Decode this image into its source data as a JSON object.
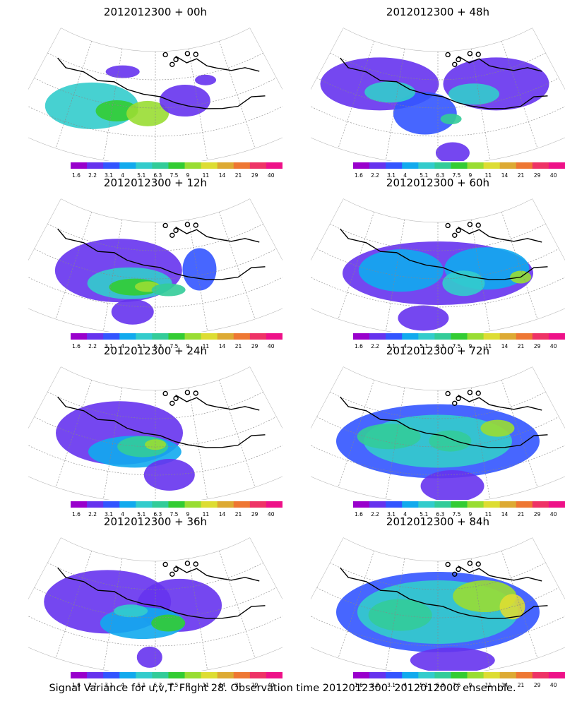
{
  "caption": "Signal Variance for u,v,T. Flight 28. Observation time 2012012300. 2012012000 ensemble.",
  "colorbar": {
    "labels": [
      "1.6",
      "2.2",
      "3.1",
      "4",
      "5.1",
      "6.3",
      "7.5",
      "9",
      "11",
      "14",
      "21",
      "29",
      "40"
    ],
    "colors": [
      "#9900cc",
      "#6633ee",
      "#3355ff",
      "#11aaee",
      "#33cccc",
      "#33cc99",
      "#33cc33",
      "#99dd33",
      "#dddd33",
      "#ddaa33",
      "#ee7733",
      "#ee3366",
      "#ee1188"
    ]
  },
  "chart_data": [
    {
      "type": "heatmap",
      "title": "2012012300  + 00h",
      "lead_hours": 0,
      "colorbar_range": [
        1.6,
        40
      ],
      "blobs": [
        {
          "u": 0.25,
          "v": 0.55,
          "rx": 0.22,
          "ry": 0.22,
          "value": 5.1
        },
        {
          "u": 0.35,
          "v": 0.55,
          "rx": 0.1,
          "ry": 0.1,
          "value": 8.3
        },
        {
          "u": 0.47,
          "v": 0.55,
          "rx": 0.1,
          "ry": 0.12,
          "value": 9
        },
        {
          "u": 0.62,
          "v": 0.45,
          "rx": 0.12,
          "ry": 0.15,
          "value": 2.2
        },
        {
          "u": 0.35,
          "v": 0.2,
          "rx": 0.08,
          "ry": 0.06,
          "value": 2.2
        },
        {
          "u": 0.72,
          "v": 0.3,
          "rx": 0.05,
          "ry": 0.05,
          "value": 2.2
        }
      ]
    },
    {
      "type": "heatmap",
      "title": "2012012300  + 48h",
      "lead_hours": 48,
      "colorbar_range": [
        1.6,
        40
      ],
      "blobs": [
        {
          "u": 0.25,
          "v": 0.35,
          "rx": 0.28,
          "ry": 0.25,
          "value": 2.2
        },
        {
          "u": 0.75,
          "v": 0.35,
          "rx": 0.25,
          "ry": 0.25,
          "value": 2.2
        },
        {
          "u": 0.45,
          "v": 0.55,
          "rx": 0.15,
          "ry": 0.2,
          "value": 3.1
        },
        {
          "u": 0.3,
          "v": 0.4,
          "rx": 0.12,
          "ry": 0.1,
          "value": 5.1
        },
        {
          "u": 0.65,
          "v": 0.4,
          "rx": 0.12,
          "ry": 0.1,
          "value": 5.1
        },
        {
          "u": 0.55,
          "v": 0.9,
          "rx": 0.08,
          "ry": 0.1,
          "value": 2.2
        },
        {
          "u": 0.55,
          "v": 0.6,
          "rx": 0.05,
          "ry": 0.05,
          "value": 6.3
        }
      ]
    },
    {
      "type": "heatmap",
      "title": "2012012300  + 12h",
      "lead_hours": 12,
      "colorbar_range": [
        1.6,
        40
      ],
      "blobs": [
        {
          "u": 0.35,
          "v": 0.45,
          "rx": 0.3,
          "ry": 0.3,
          "value": 2.2
        },
        {
          "u": 0.4,
          "v": 0.55,
          "rx": 0.2,
          "ry": 0.15,
          "value": 5.1
        },
        {
          "u": 0.42,
          "v": 0.58,
          "rx": 0.12,
          "ry": 0.08,
          "value": 7.5
        },
        {
          "u": 0.47,
          "v": 0.57,
          "rx": 0.06,
          "ry": 0.05,
          "value": 9
        },
        {
          "u": 0.55,
          "v": 0.6,
          "rx": 0.08,
          "ry": 0.06,
          "value": 6.3
        },
        {
          "u": 0.42,
          "v": 0.8,
          "rx": 0.1,
          "ry": 0.12,
          "value": 2.2
        },
        {
          "u": 0.68,
          "v": 0.45,
          "rx": 0.08,
          "ry": 0.2,
          "value": 3.1
        }
      ]
    },
    {
      "type": "heatmap",
      "title": "2012012300  + 60h",
      "lead_hours": 60,
      "colorbar_range": [
        1.6,
        40
      ],
      "blobs": [
        {
          "u": 0.5,
          "v": 0.45,
          "rx": 0.45,
          "ry": 0.3,
          "value": 2.2
        },
        {
          "u": 0.35,
          "v": 0.45,
          "rx": 0.2,
          "ry": 0.2,
          "value": 4
        },
        {
          "u": 0.7,
          "v": 0.45,
          "rx": 0.2,
          "ry": 0.2,
          "value": 4
        },
        {
          "u": 0.6,
          "v": 0.55,
          "rx": 0.1,
          "ry": 0.12,
          "value": 5.1
        },
        {
          "u": 0.82,
          "v": 0.6,
          "rx": 0.05,
          "ry": 0.06,
          "value": 9
        },
        {
          "u": 0.45,
          "v": 0.85,
          "rx": 0.12,
          "ry": 0.12,
          "value": 2.2
        }
      ]
    },
    {
      "type": "heatmap",
      "title": "2012012300  + 24h",
      "lead_hours": 24,
      "colorbar_range": [
        1.6,
        40
      ],
      "blobs": [
        {
          "u": 0.35,
          "v": 0.4,
          "rx": 0.3,
          "ry": 0.3,
          "value": 2.2
        },
        {
          "u": 0.42,
          "v": 0.55,
          "rx": 0.22,
          "ry": 0.15,
          "value": 4
        },
        {
          "u": 0.45,
          "v": 0.5,
          "rx": 0.12,
          "ry": 0.1,
          "value": 6.3
        },
        {
          "u": 0.5,
          "v": 0.48,
          "rx": 0.05,
          "ry": 0.05,
          "value": 9
        },
        {
          "u": 0.55,
          "v": 0.75,
          "rx": 0.12,
          "ry": 0.15,
          "value": 2.2
        }
      ]
    },
    {
      "type": "heatmap",
      "title": "2012012300  + 72h",
      "lead_hours": 72,
      "colorbar_range": [
        1.6,
        40
      ],
      "blobs": [
        {
          "u": 0.5,
          "v": 0.45,
          "rx": 0.48,
          "ry": 0.35,
          "value": 3.1
        },
        {
          "u": 0.5,
          "v": 0.45,
          "rx": 0.35,
          "ry": 0.25,
          "value": 5.1
        },
        {
          "u": 0.3,
          "v": 0.45,
          "rx": 0.15,
          "ry": 0.12,
          "value": 6.3
        },
        {
          "u": 0.55,
          "v": 0.45,
          "rx": 0.1,
          "ry": 0.1,
          "value": 6.3
        },
        {
          "u": 0.75,
          "v": 0.4,
          "rx": 0.08,
          "ry": 0.08,
          "value": 9
        },
        {
          "u": 0.55,
          "v": 0.85,
          "rx": 0.15,
          "ry": 0.15,
          "value": 2.2
        }
      ]
    },
    {
      "type": "heatmap",
      "title": "2012012300  + 36h",
      "lead_hours": 36,
      "colorbar_range": [
        1.6,
        40
      ],
      "blobs": [
        {
          "u": 0.3,
          "v": 0.4,
          "rx": 0.3,
          "ry": 0.3,
          "value": 2.2
        },
        {
          "u": 0.6,
          "v": 0.4,
          "rx": 0.2,
          "ry": 0.25,
          "value": 2.2
        },
        {
          "u": 0.45,
          "v": 0.55,
          "rx": 0.2,
          "ry": 0.15,
          "value": 4
        },
        {
          "u": 0.55,
          "v": 0.55,
          "rx": 0.08,
          "ry": 0.08,
          "value": 7.5
        },
        {
          "u": 0.4,
          "v": 0.45,
          "rx": 0.08,
          "ry": 0.06,
          "value": 5.1
        },
        {
          "u": 0.48,
          "v": 0.85,
          "rx": 0.06,
          "ry": 0.1,
          "value": 2.2
        }
      ]
    },
    {
      "type": "heatmap",
      "title": "2012012300  + 84h",
      "lead_hours": 84,
      "colorbar_range": [
        1.6,
        40
      ],
      "blobs": [
        {
          "u": 0.5,
          "v": 0.45,
          "rx": 0.48,
          "ry": 0.38,
          "value": 3.1
        },
        {
          "u": 0.5,
          "v": 0.45,
          "rx": 0.38,
          "ry": 0.3,
          "value": 5.1
        },
        {
          "u": 0.35,
          "v": 0.5,
          "rx": 0.15,
          "ry": 0.15,
          "value": 6.3
        },
        {
          "u": 0.7,
          "v": 0.35,
          "rx": 0.15,
          "ry": 0.15,
          "value": 9
        },
        {
          "u": 0.8,
          "v": 0.5,
          "rx": 0.06,
          "ry": 0.12,
          "value": 11
        },
        {
          "u": 0.55,
          "v": 0.88,
          "rx": 0.2,
          "ry": 0.12,
          "value": 2.2
        }
      ]
    }
  ]
}
